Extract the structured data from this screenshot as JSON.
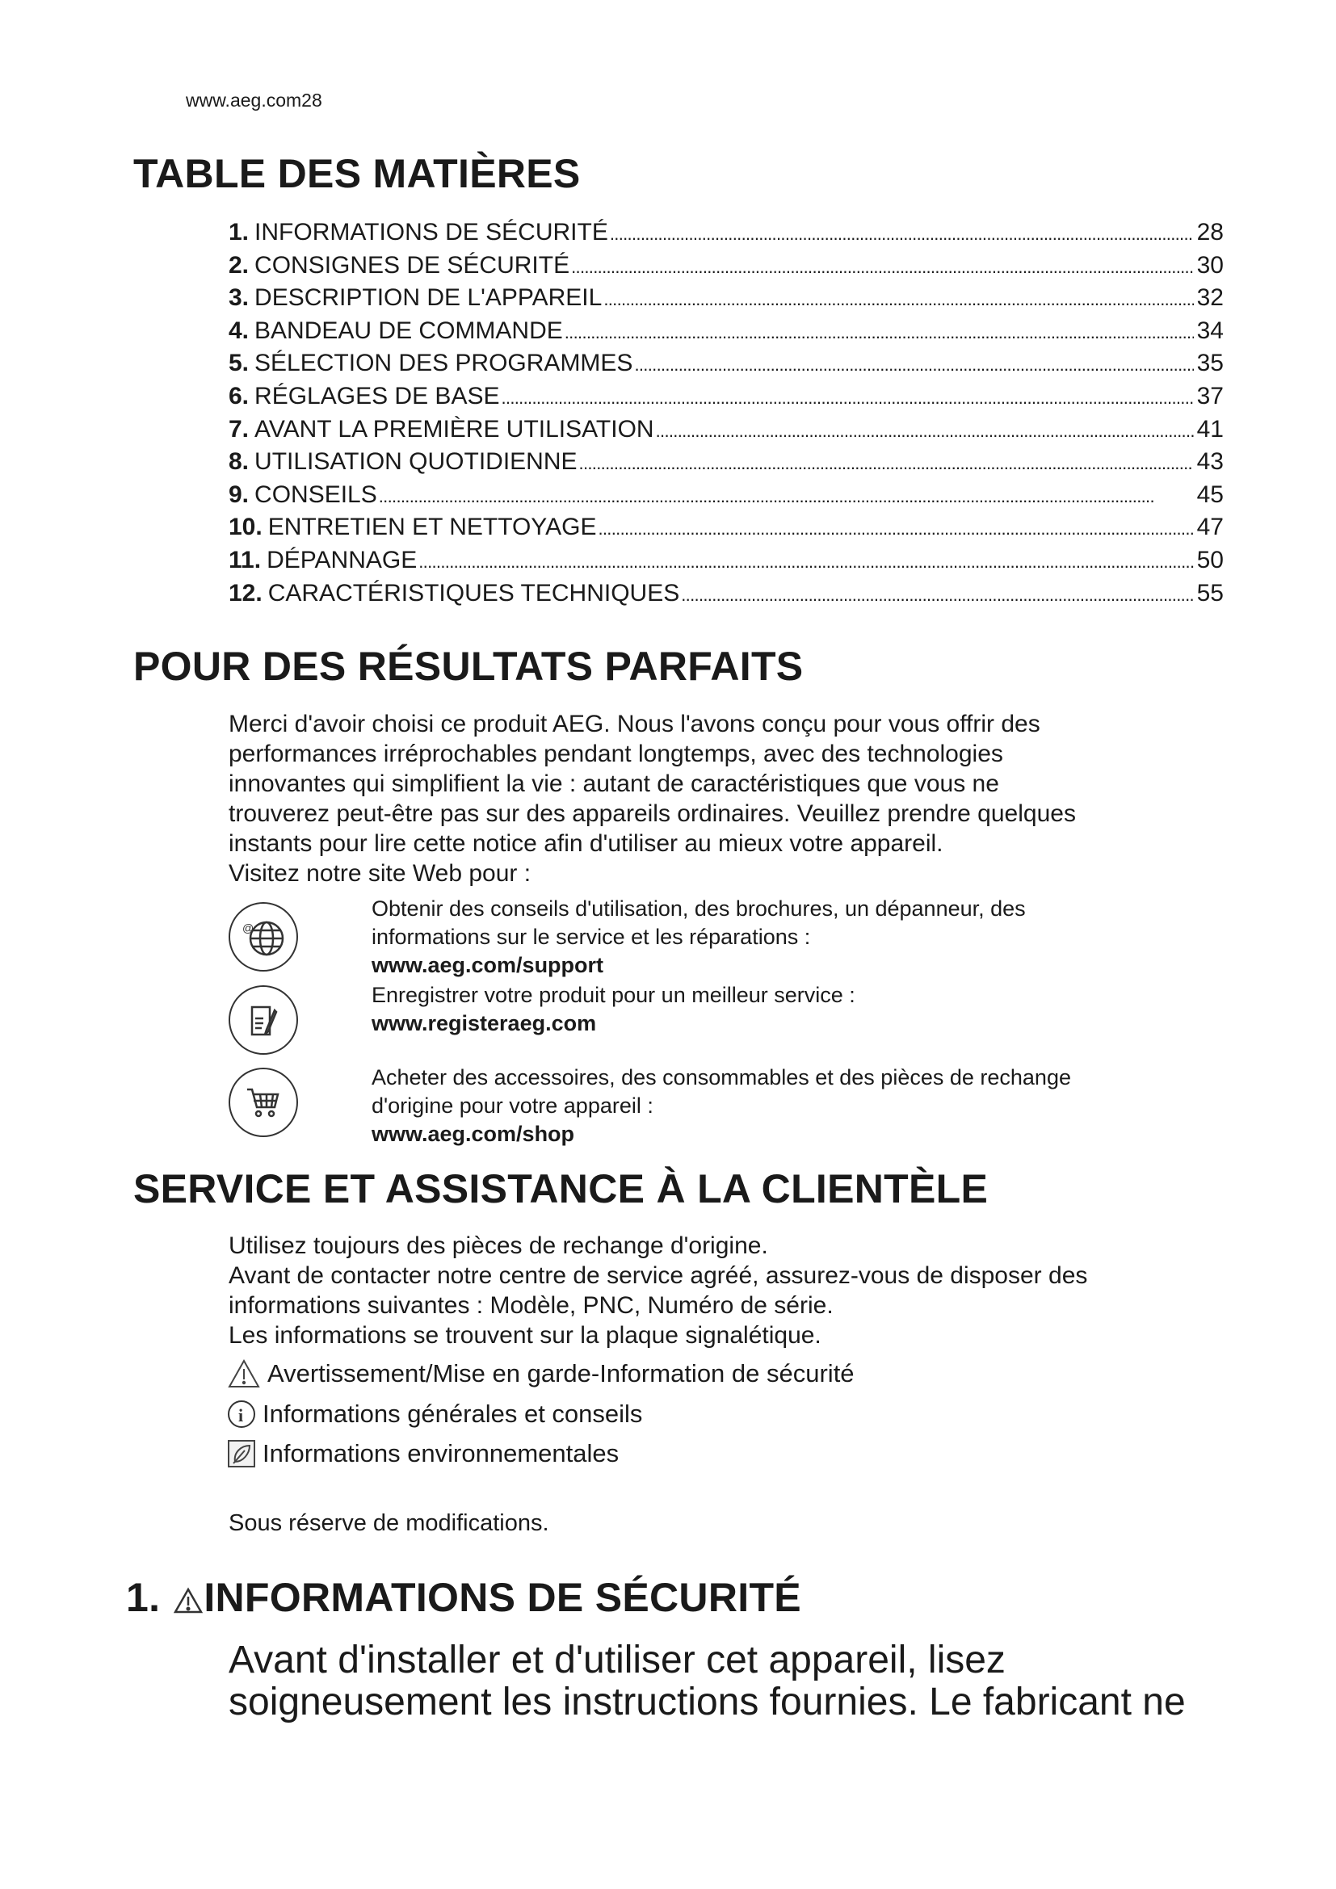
{
  "header": {
    "site": "www.aeg.com",
    "page": "28"
  },
  "toc": {
    "title": "TABLE DES MATIÈRES",
    "items": [
      {
        "num": "1.",
        "label": "INFORMATIONS DE SÉCURITÉ",
        "page": "28"
      },
      {
        "num": "2.",
        "label": "CONSIGNES DE SÉCURITÉ",
        "page": "30"
      },
      {
        "num": "3.",
        "label": "DESCRIPTION DE L'APPAREIL",
        "page": "32"
      },
      {
        "num": "4.",
        "label": "BANDEAU DE COMMANDE",
        "page": "34"
      },
      {
        "num": "5.",
        "label": "SÉLECTION DES PROGRAMMES",
        "page": "35"
      },
      {
        "num": "6.",
        "label": "RÉGLAGES DE BASE",
        "page": "37"
      },
      {
        "num": "7.",
        "label": "AVANT LA PREMIÈRE UTILISATION",
        "page": "41"
      },
      {
        "num": "8.",
        "label": "UTILISATION QUOTIDIENNE",
        "page": "43"
      },
      {
        "num": "9.",
        "label": "CONSEILS",
        "page": "45"
      },
      {
        "num": "10.",
        "label": "ENTRETIEN ET NETTOYAGE",
        "page": "47"
      },
      {
        "num": "11.",
        "label": "DÉPANNAGE",
        "page": "50"
      },
      {
        "num": "12.",
        "label": "CARACTÉRISTIQUES TECHNIQUES",
        "page": "55"
      }
    ]
  },
  "results": {
    "title": "POUR DES RÉSULTATS PARFAITS",
    "lines": [
      "Merci d'avoir choisi ce produit AEG. Nous l'avons conçu pour vous offrir des",
      "performances irréprochables pendant longtemps, avec des technologies",
      "innovantes qui simplifient la vie : autant de caractéristiques que vous ne",
      "trouverez peut-être pas sur des appareils ordinaires. Veuillez prendre quelques",
      "instants pour lire cette notice afin d'utiliser au mieux votre appareil.",
      "Visitez notre site Web pour :"
    ],
    "links": [
      {
        "icon": "globe-icon",
        "lines": [
          "Obtenir des conseils d'utilisation, des brochures, un dépanneur, des",
          "informations sur le service et les réparations :"
        ],
        "url": "www.aeg.com/support"
      },
      {
        "icon": "register-icon",
        "lines": [
          "Enregistrer votre produit pour un meilleur service :"
        ],
        "url": "www.registeraeg.com"
      },
      {
        "icon": "cart-icon",
        "lines": [
          "Acheter des accessoires, des consommables et des pièces de rechange",
          "d'origine pour votre appareil :"
        ],
        "url": "www.aeg.com/shop"
      }
    ]
  },
  "service": {
    "title": "SERVICE ET ASSISTANCE À LA CLIENTÈLE",
    "lines": [
      "Utilisez toujours des pièces de rechange d'origine.",
      "Avant de contacter notre centre de service agréé, assurez-vous de disposer des",
      "informations suivantes : Modèle, PNC, Numéro de série.",
      "Les informations se trouvent sur la plaque signalétique."
    ],
    "legend": [
      {
        "icon": "warning-icon",
        "label": "Avertissement/Mise en garde-Information de sécurité"
      },
      {
        "icon": "info-icon",
        "label": "Informations générales et conseils"
      },
      {
        "icon": "leaf-icon",
        "label": "Informations environnementales"
      }
    ],
    "note": "Sous réserve de modifications."
  },
  "section1": {
    "num": "1.",
    "title": "INFORMATIONS DE SÉCURITÉ",
    "lines": [
      "Avant d'installer et d'utiliser cet appareil, lisez",
      "soigneusement les instructions fournies. Le fabricant ne"
    ]
  }
}
